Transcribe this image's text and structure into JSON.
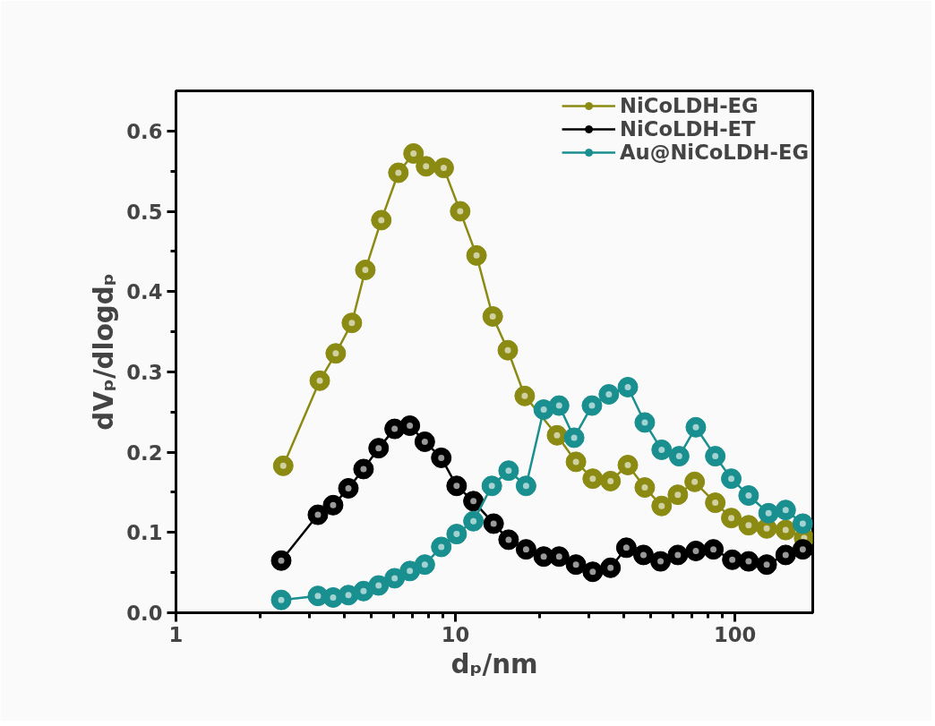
{
  "chart_data": {
    "type": "line",
    "xlabel": "dₚ/nm",
    "ylabel": "dVₚ/dlogdₚ",
    "log": "x",
    "marker": "circle",
    "line_style": "solid",
    "legend": "top right",
    "grid": false,
    "xlim": [
      1,
      190
    ],
    "xticks": [
      1,
      10,
      100
    ],
    "ylim": [
      0,
      0.65
    ],
    "yticks": [
      {
        "value": 0,
        "label": "0.0"
      },
      0.1,
      0.2,
      0.3,
      0.4,
      0.5,
      0.6
    ],
    "series": [
      {
        "name": "NiCoLDH-EG",
        "color": "#8b8b14",
        "x": [
          2.42,
          3.27,
          3.73,
          4.26,
          4.76,
          5.43,
          6.25,
          7.08,
          7.85,
          9.08,
          10.4,
          11.9,
          13.6,
          15.4,
          17.7,
          23.1,
          27.0,
          31.0,
          35.9,
          41.4,
          47.6,
          54.7,
          62.5,
          71.8,
          85.1,
          97.1,
          112,
          130,
          152,
          177
        ],
        "values": [
          0.183,
          0.289,
          0.323,
          0.361,
          0.427,
          0.489,
          0.548,
          0.572,
          0.556,
          0.554,
          0.5,
          0.445,
          0.369,
          0.327,
          0.27,
          0.221,
          0.188,
          0.167,
          0.164,
          0.184,
          0.156,
          0.133,
          0.147,
          0.163,
          0.137,
          0.118,
          0.109,
          0.105,
          0.103,
          0.093
        ]
      },
      {
        "name": "NiCoLDH-ET",
        "color": "#000000",
        "x": [
          2.38,
          3.22,
          3.65,
          4.14,
          4.69,
          5.31,
          6.06,
          6.87,
          7.77,
          8.9,
          10.1,
          11.6,
          13.7,
          15.5,
          17.9,
          20.7,
          23.5,
          27.0,
          31.0,
          35.9,
          40.9,
          47.1,
          54.2,
          62.5,
          72.5,
          83.8,
          97.9,
          112,
          130,
          152,
          175
        ],
        "values": [
          0.065,
          0.122,
          0.134,
          0.155,
          0.179,
          0.205,
          0.229,
          0.233,
          0.213,
          0.193,
          0.158,
          0.139,
          0.111,
          0.091,
          0.079,
          0.07,
          0.07,
          0.06,
          0.051,
          0.056,
          0.081,
          0.072,
          0.064,
          0.072,
          0.077,
          0.079,
          0.066,
          0.064,
          0.06,
          0.072,
          0.079
        ]
      },
      {
        "name": "Au@NiCoLDH-EG",
        "color": "#1a8f8f",
        "x": [
          2.38,
          3.22,
          3.65,
          4.14,
          4.69,
          5.31,
          6.06,
          6.87,
          7.77,
          8.9,
          10.1,
          11.6,
          13.5,
          15.5,
          17.9,
          20.7,
          23.5,
          26.6,
          30.8,
          35.4,
          41.4,
          47.6,
          54.7,
          63.2,
          72.5,
          85.1,
          97.1,
          112,
          132,
          152,
          175
        ],
        "values": [
          0.016,
          0.021,
          0.019,
          0.022,
          0.027,
          0.034,
          0.043,
          0.052,
          0.06,
          0.082,
          0.098,
          0.114,
          0.158,
          0.177,
          0.158,
          0.253,
          0.258,
          0.218,
          0.258,
          0.272,
          0.281,
          0.237,
          0.203,
          0.195,
          0.231,
          0.195,
          0.167,
          0.146,
          0.124,
          0.128,
          0.111
        ]
      }
    ]
  }
}
